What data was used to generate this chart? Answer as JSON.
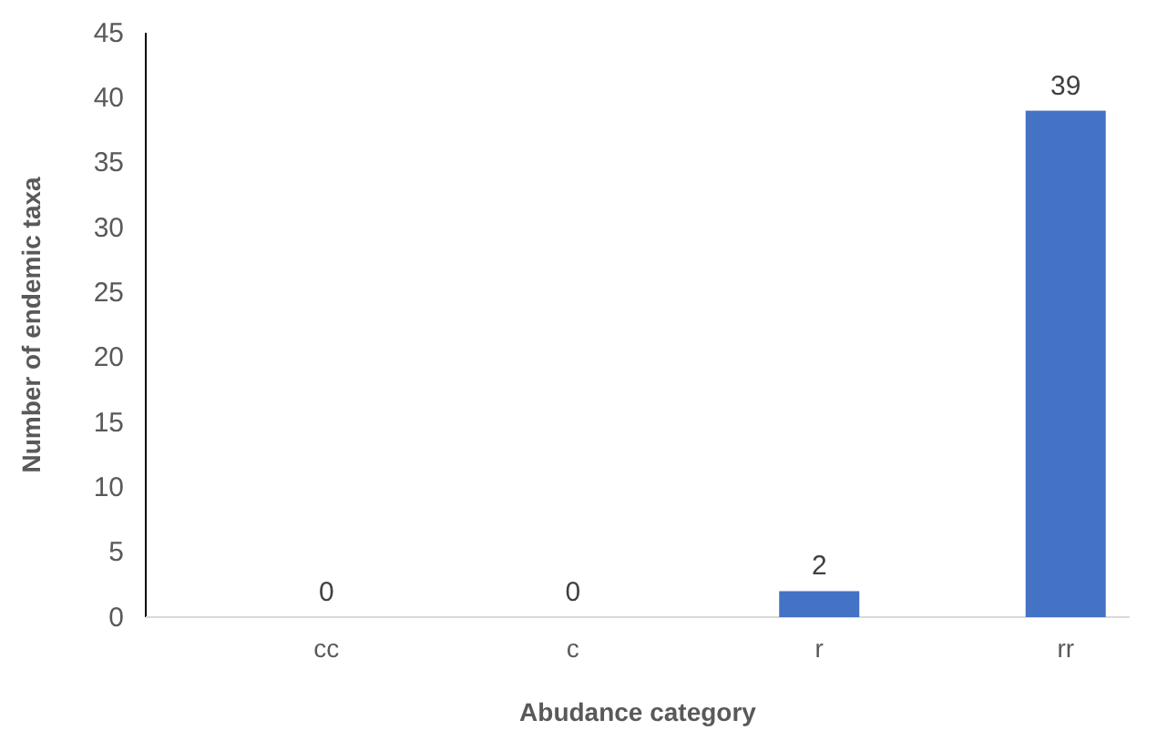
{
  "chart_data": {
    "type": "bar",
    "xlabel": "Abudance category",
    "ylabel": "Number of endemic taxa",
    "categories": [
      "cc",
      "c",
      "r",
      "rr"
    ],
    "values": [
      0,
      0,
      2,
      39
    ],
    "color": "#4472c4",
    "ylim": [
      0,
      45
    ],
    "yticks": [
      0,
      5,
      10,
      15,
      20,
      25,
      30,
      35,
      40,
      45
    ],
    "data_labels": true
  }
}
